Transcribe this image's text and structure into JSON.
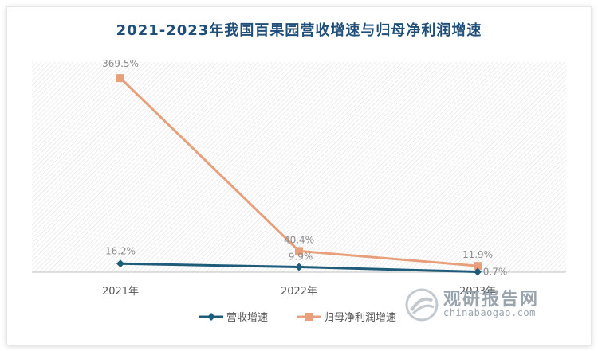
{
  "chart_data": {
    "type": "line",
    "title": "2021-2023年我国百果园营收增速与归母净利润增速",
    "categories": [
      "2021年",
      "2022年",
      "2023年"
    ],
    "series": [
      {
        "name": "营收增速",
        "values": [
          16.2,
          9.9,
          0.7
        ],
        "labels": [
          "16.2%",
          "9.9%",
          "0.7%"
        ],
        "color": "#1f5c7a",
        "marker": "diamond"
      },
      {
        "name": "归母净利润增速",
        "values": [
          369.5,
          40.4,
          11.9
        ],
        "labels": [
          "369.5%",
          "40.4%",
          "11.9%"
        ],
        "color": "#e8a07c",
        "marker": "square"
      }
    ],
    "ylim": [
      0,
      400
    ],
    "legend_position": "bottom",
    "grid": false
  },
  "watermark": {
    "brand": "观研报告网",
    "url": "chinabaogao.com"
  }
}
